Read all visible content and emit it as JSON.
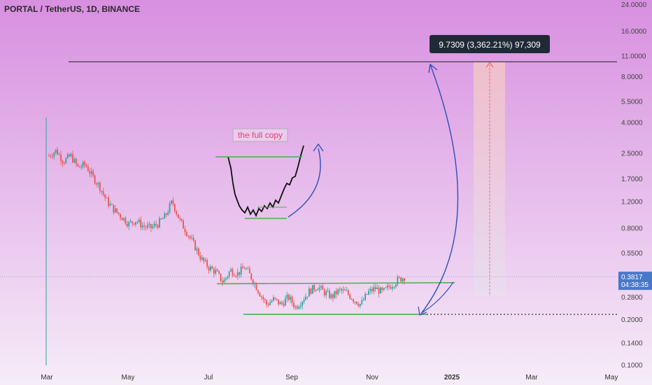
{
  "header": {
    "title": "PORTAL / TetherUS, 1D, BINANCE"
  },
  "colors": {
    "bg_top": "#d88fe0",
    "bg_bottom": "#f6ecf8",
    "up": "#26a69a",
    "down": "#ef5350",
    "channel": "#4caf50",
    "target_line": "#1e1e1e",
    "arrow": "#2f4fb5",
    "price_badge": "#4a78c8",
    "label_bg": "#1f2a36",
    "annotation_border": "#b0b0b0",
    "annotation_text": "#e0406a",
    "projection_fill": "#f2c2c8"
  },
  "chart_data": {
    "type": "candlestick",
    "scale": "log",
    "ylim": [
      0.1,
      24.0
    ],
    "y_ticks": [
      "24.0000",
      "16.0000",
      "11.0000",
      "8.0000",
      "5.5000",
      "4.0000",
      "2.5000",
      "1.7000",
      "1.2000",
      "0.8000",
      "0.5500",
      "0.2800",
      "0.2000",
      "0.1400",
      "0.1000"
    ],
    "x_ticks": [
      "Mar",
      "May",
      "Jul",
      "Sep",
      "Nov",
      "2025",
      "Mar",
      "May"
    ],
    "x_ticks_bold": [
      false,
      false,
      false,
      false,
      false,
      true,
      false,
      false
    ],
    "last_price": "0.3817",
    "countdown": "04:38:35",
    "ohlc_path": [
      2.4,
      2.6,
      2.2,
      2.4,
      2.0,
      2.1,
      1.75,
      1.5,
      1.2,
      1.05,
      0.95,
      0.85,
      0.9,
      0.82,
      0.8,
      0.85,
      0.95,
      1.2,
      0.9,
      0.75,
      0.62,
      0.5,
      0.44,
      0.41,
      0.35,
      0.42,
      0.4,
      0.44,
      0.37,
      0.3,
      0.25,
      0.27,
      0.25,
      0.28,
      0.24,
      0.27,
      0.31,
      0.33,
      0.3,
      0.28,
      0.31,
      0.3,
      0.27,
      0.25,
      0.3,
      0.32,
      0.3,
      0.33,
      0.36,
      0.38
    ],
    "resistance_level": 0.345,
    "support_level": 0.215,
    "target_level": 10.0,
    "measure_label": "9.7309 (3,362.21%) 97,309",
    "annotation": "the full copy"
  }
}
